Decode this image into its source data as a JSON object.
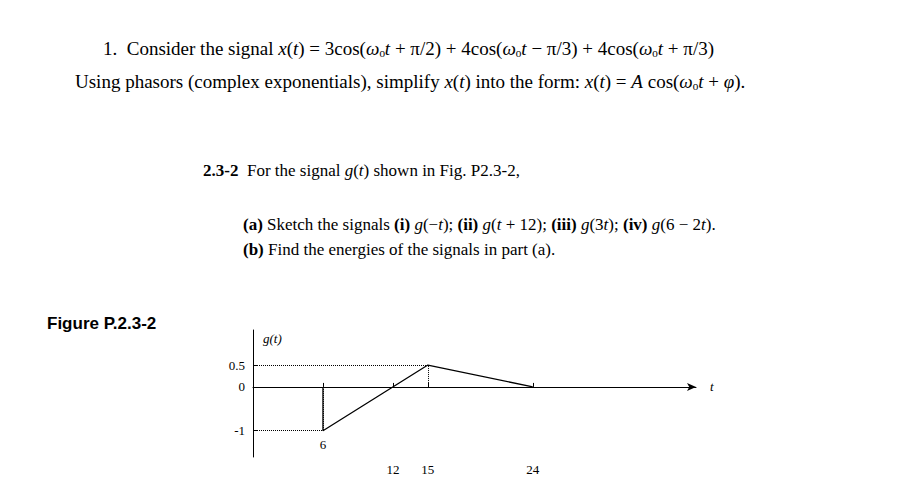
{
  "problem_1": {
    "number": "1.",
    "text_1": "Consider the signal",
    "equation_1": "x(t) = 3cos(ωₒt + π/2) + 4cos(ωₒt − π/3) + 4cos(ωₒt + π/3)",
    "text_2": "Using phasors (complex exponentials), simplify",
    "equation_2": "x(t)",
    "text_3": "into the form:",
    "equation_3": "x(t) = A cos(ωₒt + φ)."
  },
  "problem_2": {
    "number": "2.3-2",
    "statement": "For the signal g(t) shown in Fig. P2.3-2,",
    "parts": [
      {
        "label": "(a)",
        "text": "Sketch the signals (i) g(−t); (ii) g(t + 12); (iii) g(3t); (iv) g(6 − 2t)."
      },
      {
        "label": "(b)",
        "text": "Find the energies of the signals in part (a)."
      }
    ]
  },
  "figure_label": "Figure P.2.3-2",
  "chart_data": {
    "type": "line",
    "y_label": "g(t)",
    "x_label": "t",
    "x": [
      6,
      6,
      15,
      24
    ],
    "values": [
      0,
      -1,
      0.5,
      0
    ],
    "color": "#000000",
    "xlim": [
      0,
      38
    ],
    "ylim": [
      -1.6,
      1.3
    ],
    "xticks": [
      6,
      12,
      15,
      24
    ],
    "yticks": [
      -1,
      0,
      0.5
    ],
    "grid": false
  }
}
